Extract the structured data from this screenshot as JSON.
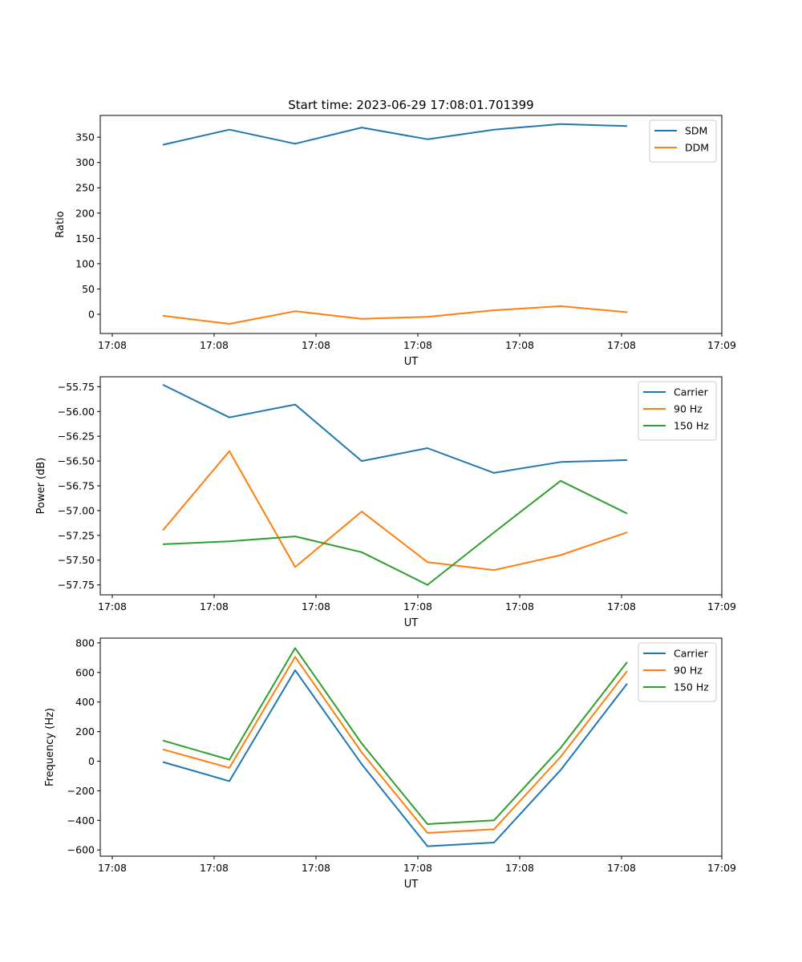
{
  "title": "Start time: 2023-06-29 17:08:01.701399",
  "colors": {
    "blue": "#1f77b4",
    "orange": "#ff7f0e",
    "green": "#2ca02c"
  },
  "chart_data": [
    {
      "type": "line",
      "xlabel": "UT",
      "ylabel": "Ratio",
      "x_tick_labels": [
        "17:08",
        "17:08",
        "17:08",
        "17:08",
        "17:08",
        "17:08",
        "17:09"
      ],
      "ylim": [
        -38,
        393
      ],
      "yticks": [
        0,
        50,
        100,
        150,
        200,
        250,
        300,
        350
      ],
      "ytick_labels": [
        "0",
        "50",
        "100",
        "150",
        "200",
        "250",
        "300",
        "350"
      ],
      "legend": "top-right",
      "series": [
        {
          "name": "SDM",
          "color": "#1f77b4",
          "values": [
            335,
            365,
            337,
            369,
            346,
            365,
            376,
            372
          ]
        },
        {
          "name": "DDM",
          "color": "#ff7f0e",
          "values": [
            -3,
            -19,
            6,
            -9,
            -5,
            8,
            16,
            4
          ]
        }
      ]
    },
    {
      "type": "line",
      "xlabel": "UT",
      "ylabel": "Power (dB)",
      "x_tick_labels": [
        "17:08",
        "17:08",
        "17:08",
        "17:08",
        "17:08",
        "17:08",
        "17:09"
      ],
      "ylim": [
        -57.85,
        -55.65
      ],
      "yticks": [
        -57.75,
        -57.5,
        -57.25,
        -57.0,
        -56.75,
        -56.5,
        -56.25,
        -56.0,
        -55.75
      ],
      "ytick_labels": [
        "−57.75",
        "−57.50",
        "−57.25",
        "−57.00",
        "−56.75",
        "−56.50",
        "−56.25",
        "−56.00",
        "−55.75"
      ],
      "legend": "top-right",
      "series": [
        {
          "name": "Carrier",
          "color": "#1f77b4",
          "values": [
            -55.73,
            -56.06,
            -55.93,
            -56.5,
            -56.37,
            -56.62,
            -56.51,
            -56.49
          ]
        },
        {
          "name": "90 Hz",
          "color": "#ff7f0e",
          "values": [
            -57.2,
            -56.4,
            -57.57,
            -57.01,
            -57.52,
            -57.6,
            -57.45,
            -57.22
          ]
        },
        {
          "name": "150 Hz",
          "color": "#2ca02c",
          "values": [
            -57.34,
            -57.31,
            -57.26,
            -57.42,
            -57.75,
            -57.22,
            -56.7,
            -57.03
          ]
        }
      ]
    },
    {
      "type": "line",
      "xlabel": "UT",
      "ylabel": "Frequency (Hz)",
      "x_tick_labels": [
        "17:08",
        "17:08",
        "17:08",
        "17:08",
        "17:08",
        "17:08",
        "17:09"
      ],
      "ylim": [
        -642,
        832
      ],
      "yticks": [
        -600,
        -400,
        -200,
        0,
        200,
        400,
        600,
        800
      ],
      "ytick_labels": [
        "−600",
        "−400",
        "−200",
        "0",
        "200",
        "400",
        "600",
        "800"
      ],
      "legend": "top-right",
      "series": [
        {
          "name": "Carrier",
          "color": "#1f77b4",
          "values": [
            -5,
            -135,
            615,
            -20,
            -575,
            -550,
            -60,
            525
          ]
        },
        {
          "name": "90 Hz",
          "color": "#ff7f0e",
          "values": [
            80,
            -45,
            705,
            60,
            -485,
            -460,
            30,
            610
          ]
        },
        {
          "name": "150 Hz",
          "color": "#2ca02c",
          "values": [
            140,
            10,
            765,
            120,
            -425,
            -400,
            90,
            670
          ]
        }
      ]
    }
  ]
}
